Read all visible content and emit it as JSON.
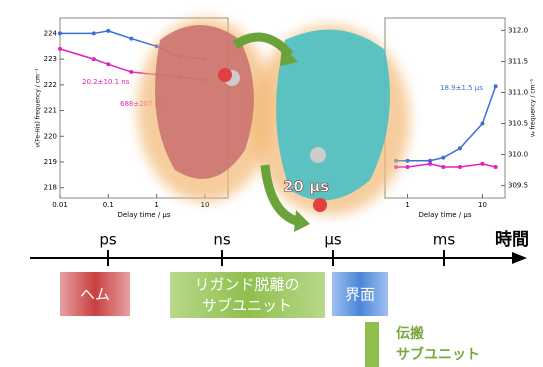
{
  "plots": [
    {
      "ylabel": "ν(Fe-His) frequency / cm⁻¹",
      "xlabel": "Delay time / μs",
      "log_x": true,
      "xlim": [
        0.01,
        30
      ],
      "xticks": [
        0.01,
        0.1,
        1,
        10
      ],
      "ylim": [
        217.6,
        224.6
      ],
      "yticks": [
        218,
        219,
        220,
        221,
        222,
        223,
        224
      ],
      "x": [
        0.01,
        0.05,
        0.1,
        0.3,
        1,
        3,
        10
      ],
      "series": [
        {
          "color": "#3b6fd8",
          "values": [
            224,
            224,
            224.1,
            223.8,
            223.5,
            223.1,
            223
          ]
        },
        {
          "color": "#e020c0",
          "values": [
            223.4,
            223,
            222.8,
            222.5,
            222.4,
            222.3,
            222.2
          ]
        }
      ],
      "annotations": [
        {
          "text": "20.2±10.1 ns",
          "color": "#e020c0"
        },
        {
          "text": "688±207 ns",
          "color": "#e020c0"
        }
      ]
    },
    {
      "ylabel": "ν₄ frequency / cm⁻¹",
      "xlabel": "Delay time / μs",
      "log_x": true,
      "xlim": [
        0.5,
        20
      ],
      "xticks": [
        1,
        10
      ],
      "ylim": [
        309.3,
        312.2
      ],
      "yticks": [
        {
          "value": 309.5,
          "label": "309.5"
        },
        {
          "value": 310,
          "label": "310.0"
        },
        {
          "value": 310.5,
          "label": "310.5"
        },
        {
          "value": 311,
          "label": "311.0"
        },
        {
          "value": 311.5,
          "label": "311.5"
        },
        {
          "value": 312,
          "label": "312.0"
        }
      ],
      "x": [
        0.7,
        1,
        2,
        3,
        5,
        10,
        15
      ],
      "series": [
        {
          "color": "#3b6fd8",
          "values": [
            309.9,
            309.9,
            309.9,
            309.95,
            310.1,
            310.5,
            311.1
          ]
        },
        {
          "color": "#e020c0",
          "values": [
            309.8,
            309.8,
            309.85,
            309.8,
            309.8,
            309.85,
            309.8
          ]
        }
      ],
      "annotations": [
        {
          "text": "18.9±1.5 μs",
          "color": "#3b6fd8"
        }
      ]
    }
  ],
  "center_label": "20 μs",
  "timeline": {
    "axis_label": "時間",
    "ticks": [
      "ps",
      "ns",
      "μs",
      "ms"
    ]
  },
  "boxes": [
    {
      "text": [
        "ヘム"
      ]
    },
    {
      "text": [
        "リガンド脱離の",
        "サブユニット"
      ]
    },
    {
      "text": [
        "界面"
      ]
    },
    {
      "text": [
        "伝搬",
        "サブユニット"
      ]
    }
  ]
}
